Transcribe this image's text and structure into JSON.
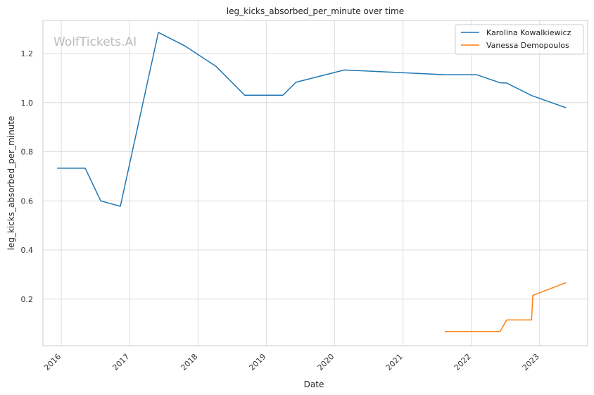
{
  "chart_data": {
    "type": "line",
    "title": "leg_kicks_absorbed_per_minute over time",
    "xlabel": "Date",
    "ylabel": "leg_kicks_absorbed_per_minute",
    "watermark": "WolfTickets.AI",
    "xlim": [
      "2015-09-25",
      "2023-09-15"
    ],
    "ylim": [
      0.01,
      1.335
    ],
    "x_ticks": [
      "2016",
      "2017",
      "2018",
      "2019",
      "2020",
      "2021",
      "2022",
      "2023"
    ],
    "y_ticks": [
      "0.2",
      "0.4",
      "0.6",
      "0.8",
      "1.0",
      "1.2"
    ],
    "grid": true,
    "legend_position": "top-right",
    "series": [
      {
        "name": "Karolina Kowalkiewicz",
        "color": "#1f77b4",
        "x": [
          "2015-12-12",
          "2016-05-08",
          "2016-07-30",
          "2016-11-12",
          "2017-06-03",
          "2017-10-21",
          "2018-04-07",
          "2018-09-08",
          "2019-02-23",
          "2019-03-30",
          "2019-06-08",
          "2020-02-22",
          "2021-08-14",
          "2022-01-29",
          "2022-06-04",
          "2022-07-09",
          "2022-11-19",
          "2023-05-20"
        ],
        "values": [
          0.733,
          0.733,
          0.6,
          0.578,
          1.286,
          1.232,
          1.148,
          1.03,
          1.03,
          1.03,
          1.083,
          1.133,
          1.114,
          1.114,
          1.081,
          1.08,
          1.029,
          0.98
        ]
      },
      {
        "name": "Vanessa Demopoulos",
        "color": "#ff7f0e",
        "x": [
          "2021-08-14",
          "2022-06-04",
          "2022-07-09",
          "2022-11-19",
          "2022-11-26",
          "2023-05-20"
        ],
        "values": [
          0.068,
          0.068,
          0.115,
          0.115,
          0.215,
          0.266
        ]
      }
    ]
  }
}
